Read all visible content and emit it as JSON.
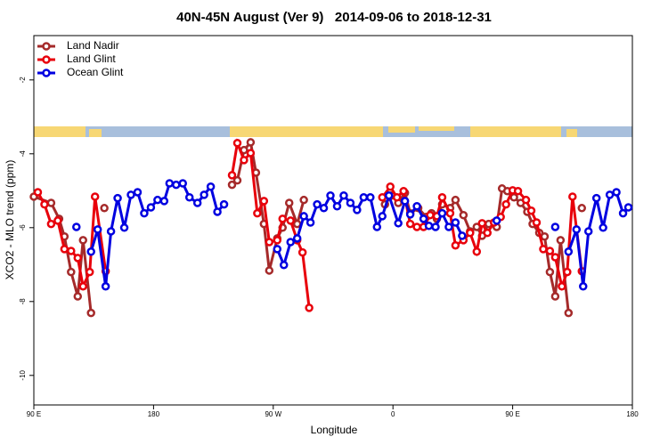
{
  "chart_data": {
    "type": "line",
    "title": "40N-45N August (Ver 9)   2014-09-06 to 2018-12-31",
    "x_label": "Longitude",
    "y_label": "XCO2 - MLO trend (ppm)",
    "xlim": [
      90,
      540
    ],
    "ylim": [
      -10.8,
      -0.8
    ],
    "xticks": [
      {
        "value": 90,
        "label": "90 E"
      },
      180,
      {
        "value": 270,
        "label": "90 W"
      },
      {
        "value": 360,
        "label": "0"
      },
      {
        "value": 450,
        "label": "90 E"
      },
      {
        "value": 540,
        "label": "180"
      }
    ],
    "yticks": [
      -10,
      -8,
      -6,
      -4,
      -2
    ],
    "legend": "upper left",
    "series": [
      {
        "name": "Land Nadir",
        "color": "#a52a2a",
        "x": [
          90,
          103,
          109,
          113,
          118,
          123,
          127,
          133,
          null,
          143,
          null,
          239,
          243,
          248,
          253,
          257,
          263,
          267,
          273,
          277,
          282,
          288,
          293,
          null,
          354,
          359,
          364,
          369,
          373,
          379,
          385,
          389,
          393,
          397,
          403,
          407,
          413,
          418,
          423,
          427,
          432,
          438,
          442,
          446,
          451,
          456,
          461,
          465,
          470,
          474,
          478,
          482,
          486,
          492,
          null,
          502
        ],
        "values": [
          -5.16,
          -5.33,
          -5.76,
          -6.24,
          -7.2,
          -7.86,
          -6.34,
          -8.31,
          null,
          -5.47,
          null,
          -4.84,
          -4.72,
          -3.9,
          -3.69,
          -4.51,
          -5.9,
          -7.16,
          -6.29,
          -6.0,
          -5.33,
          -5.9,
          -5.25,
          null,
          -5.37,
          -5.13,
          -5.33,
          -5.06,
          -5.61,
          -5.47,
          -5.71,
          -5.61,
          -5.76,
          -5.37,
          -5.47,
          -5.25,
          -5.66,
          -6.1,
          -5.98,
          -6.22,
          -5.9,
          -5.98,
          -4.94,
          -5.01,
          -5.18,
          -5.33,
          -5.57,
          -5.9,
          -6.14,
          -6.24,
          -7.2,
          -7.86,
          -6.34,
          -8.31,
          null,
          -5.47
        ]
      },
      {
        "name": "Land Glint",
        "color": "#e8000b",
        "x": [
          93,
          98,
          103,
          108,
          113,
          118,
          123,
          127,
          132,
          136,
          144,
          null,
          239,
          243,
          248,
          253,
          258,
          263,
          267,
          273,
          277,
          283,
          288,
          292,
          297,
          null,
          352,
          358,
          363,
          368,
          373,
          378,
          383,
          388,
          393,
          397,
          403,
          407,
          413,
          418,
          423,
          427,
          431,
          436,
          441,
          445,
          450,
          454,
          460,
          464,
          468,
          473,
          478,
          482,
          487,
          491,
          495,
          502
        ],
        "values": [
          -5.04,
          -5.37,
          -5.9,
          -5.81,
          -6.58,
          -6.63,
          -6.82,
          -7.59,
          -7.2,
          -5.16,
          -7.18,
          null,
          -4.58,
          -3.71,
          -4.17,
          -3.98,
          -5.61,
          -5.28,
          -6.39,
          -6.34,
          -5.76,
          -5.81,
          -6.34,
          -6.67,
          -8.17,
          null,
          -5.18,
          -4.89,
          -5.18,
          -5.01,
          -5.9,
          -5.98,
          -5.98,
          -5.66,
          -5.69,
          -5.18,
          -5.61,
          -6.48,
          -6.34,
          -6.14,
          -6.65,
          -5.88,
          -6.14,
          -5.86,
          -5.71,
          -5.37,
          -4.99,
          -5.01,
          -5.25,
          -5.54,
          -5.86,
          -6.58,
          -6.63,
          -6.8,
          -7.59,
          -7.2,
          -5.16,
          -7.18
        ]
      },
      {
        "name": "Ocean Glint",
        "color": "#0000e0",
        "x": [
          122,
          null,
          133,
          138,
          144,
          148,
          153,
          158,
          163,
          168,
          173,
          178,
          183,
          188,
          192,
          197,
          202,
          207,
          213,
          218,
          223,
          228,
          233,
          null,
          273,
          278,
          283,
          288,
          293,
          298,
          303,
          308,
          313,
          318,
          323,
          328,
          333,
          338,
          343,
          348,
          352,
          357,
          364,
          369,
          373,
          378,
          383,
          387,
          392,
          397,
          402,
          407,
          412,
          null,
          438,
          null,
          482,
          null,
          492,
          498,
          503,
          507,
          513,
          518,
          523,
          528,
          533,
          537
        ],
        "values": [
          -5.98,
          null,
          -6.65,
          -6.05,
          -7.59,
          -6.1,
          -5.2,
          -6.0,
          -5.11,
          -5.04,
          -5.61,
          -5.45,
          -5.25,
          -5.28,
          -4.8,
          -4.84,
          -4.8,
          -5.18,
          -5.33,
          -5.11,
          -4.89,
          -5.57,
          -5.37,
          null,
          -6.58,
          -7.01,
          -6.39,
          -6.29,
          -5.69,
          -5.86,
          -5.37,
          -5.47,
          -5.13,
          -5.42,
          -5.13,
          -5.33,
          -5.52,
          -5.18,
          -5.18,
          -5.98,
          -5.69,
          -5.13,
          -5.88,
          -5.28,
          -5.64,
          -5.42,
          -5.76,
          -5.95,
          -5.98,
          -5.61,
          -5.98,
          -5.86,
          -6.22,
          null,
          -5.81,
          null,
          -5.98,
          null,
          -6.65,
          -6.05,
          -7.59,
          -6.1,
          -5.2,
          -6.0,
          -5.11,
          -5.04,
          -5.61,
          -5.45
        ]
      }
    ]
  }
}
